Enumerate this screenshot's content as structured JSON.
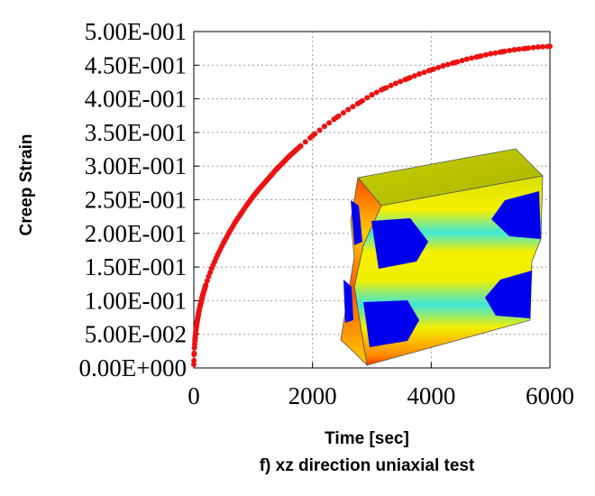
{
  "chart_data": {
    "type": "scatter",
    "xlabel": "Time [sec]",
    "ylabel": "Creep Strain",
    "caption": "f) xz direction uniaxial test",
    "xlim": [
      0,
      6000
    ],
    "ylim": [
      0,
      0.5
    ],
    "x_ticks": [
      0,
      2000,
      4000,
      6000
    ],
    "x_tick_labels": [
      "0",
      "2000",
      "4000",
      "6000"
    ],
    "y_ticks": [
      0,
      0.05,
      0.1,
      0.15,
      0.2,
      0.25,
      0.3,
      0.35,
      0.4,
      0.45,
      0.5
    ],
    "y_tick_labels": [
      "0.00E+000",
      "5.00E-002",
      "1.00E-001",
      "1.50E-001",
      "2.00E-001",
      "2.50E-001",
      "3.00E-001",
      "3.50E-001",
      "4.00E-001",
      "4.50E-001",
      "5.00E-001"
    ],
    "grid": true,
    "marker_color": "#ee1111",
    "series": [
      {
        "x": [
          0,
          5,
          10,
          20,
          30,
          50,
          75,
          100,
          150,
          200,
          250,
          300,
          400,
          500,
          600,
          700,
          800,
          900,
          1000,
          1100,
          1200,
          1300,
          1400,
          1500,
          1600,
          1700,
          1800,
          2000,
          2200,
          2400,
          2600,
          2800,
          3000,
          3200,
          3400,
          3600,
          3800,
          4000,
          4200,
          4400,
          4600,
          4800,
          5000,
          5200,
          5400,
          5600,
          5800,
          6000
        ],
        "y": [
          0.005,
          0.02,
          0.03,
          0.043,
          0.052,
          0.066,
          0.079,
          0.09,
          0.108,
          0.123,
          0.136,
          0.148,
          0.168,
          0.186,
          0.202,
          0.217,
          0.23,
          0.243,
          0.255,
          0.266,
          0.276,
          0.286,
          0.296,
          0.305,
          0.314,
          0.322,
          0.33,
          0.345,
          0.359,
          0.372,
          0.384,
          0.395,
          0.406,
          0.415,
          0.423,
          0.43,
          0.437,
          0.443,
          0.449,
          0.454,
          0.459,
          0.463,
          0.467,
          0.47,
          0.473,
          0.475,
          0.477,
          0.478
        ]
      }
    ]
  },
  "inset_image": {
    "description": "3D deformed cube contour plot",
    "colors": [
      "#0000ee",
      "#00eedd",
      "#eeee00",
      "#ff2200"
    ]
  }
}
